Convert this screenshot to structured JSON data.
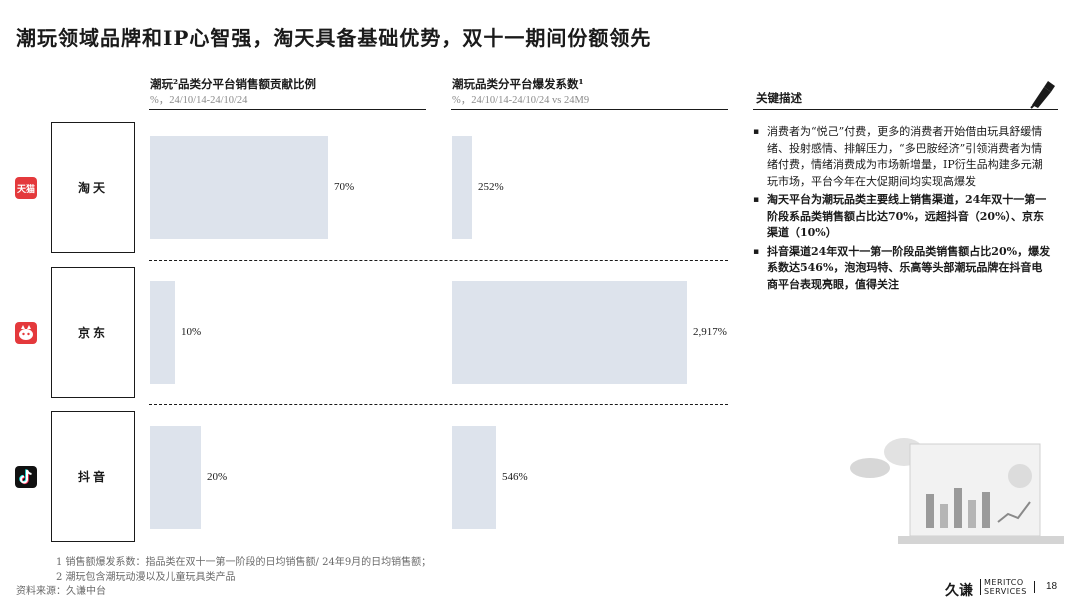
{
  "page_title": "潮玩领域品牌和IP心智强，淘天具备基础优势，双十一期间份额领先",
  "chart_data": [
    {
      "type": "bar",
      "title": "潮玩²品类分平台销售额贡献比例",
      "subtitle": "%，24/10/14-24/10/24",
      "categories": [
        "淘天",
        "京东",
        "抖音"
      ],
      "values": [
        70,
        10,
        20
      ],
      "value_labels": [
        "70%",
        "10%",
        "20%"
      ],
      "orientation": "horizontal",
      "xlim": [
        0,
        100
      ]
    },
    {
      "type": "bar",
      "title": "潮玩品类分平台爆发系数¹",
      "subtitle": "%，24/10/14-24/10/24 vs 24M9",
      "categories": [
        "淘天",
        "京东",
        "抖音"
      ],
      "values": [
        252,
        2917,
        546
      ],
      "value_labels": [
        "252%",
        "2,917%",
        "546%"
      ],
      "orientation": "horizontal",
      "xlim": [
        0,
        3150
      ]
    }
  ],
  "platforms": [
    {
      "name": "淘天",
      "logo": "tmall-logo-icon",
      "logo_text": "天猫",
      "color": "#e4393c"
    },
    {
      "name": "京东",
      "logo": "jd-logo-icon",
      "color": "#e4393c"
    },
    {
      "name": "抖音",
      "logo": "douyin-logo-icon",
      "color": "#111111"
    }
  ],
  "description": {
    "heading": "关键描述",
    "bullets": [
      "消费者为“悦己”付费，更多的消费者开始借由玩具舒缓情绪、投射感情、排解压力，“多巴胺经济”引领消费者为情绪付费，情绪消费成为市场新增量，IP衍生品构建多元潮玩市场，平台今年在大促期间均实现高爆发",
      "淘天平台为潮玩品类主要线上销售渠道，24年双十一第一阶段系品类销售额占比达70%，远超抖音（20%）、京东渠道（10%）",
      "抖音渠道24年双十一第一阶段品类销售额占比20%，爆发系数达546%，泡泡玛特、乐高等头部潮玩品牌在抖音电商平台表现亮眼，值得关注"
    ]
  },
  "footnotes": [
    "1    销售额爆发系数：指品类在双十一第一阶段的日均销售额/ 24年9月的日均销售额；",
    "2    潮玩包含潮玩动漫以及儿童玩具类产品"
  ],
  "source": "资料来源：久谦中台",
  "footer": {
    "logo_cn": "久谦",
    "logo_en_top": "MERITCO",
    "logo_en_bottom": "SERVICES",
    "page_number": "18"
  },
  "colors": {
    "bar": "#dde3ec",
    "accent": "#1a1a1a"
  }
}
